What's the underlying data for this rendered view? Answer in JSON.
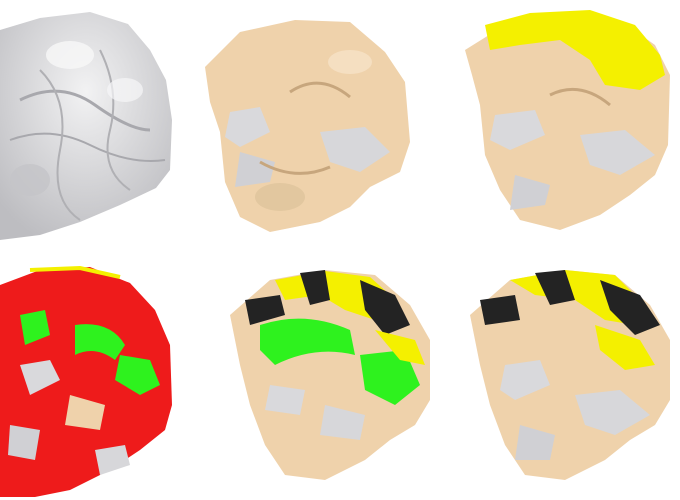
{
  "figure": {
    "panels": [
      {
        "id": "p1",
        "surface": "gray"
      },
      {
        "id": "p2",
        "surface": "tan"
      },
      {
        "id": "p3",
        "surface": "tan-yellow"
      },
      {
        "id": "p4",
        "surface": "red-green"
      },
      {
        "id": "p5",
        "surface": "tan-yellow-black-green"
      },
      {
        "id": "p6",
        "surface": "tan-yellow-black"
      }
    ]
  },
  "colors": {
    "gray": "#d7d7d9",
    "gray_dark": "#9a9a9e",
    "tan": "#efd2ab",
    "tan_dark": "#c7a67d",
    "yellow": "#f4f000",
    "black": "#232323",
    "red": "#ee1b1b",
    "red_dark": "#b81212",
    "green": "#2ef21e",
    "green_dark": "#18b80e",
    "silver": "#d9d9dc"
  }
}
